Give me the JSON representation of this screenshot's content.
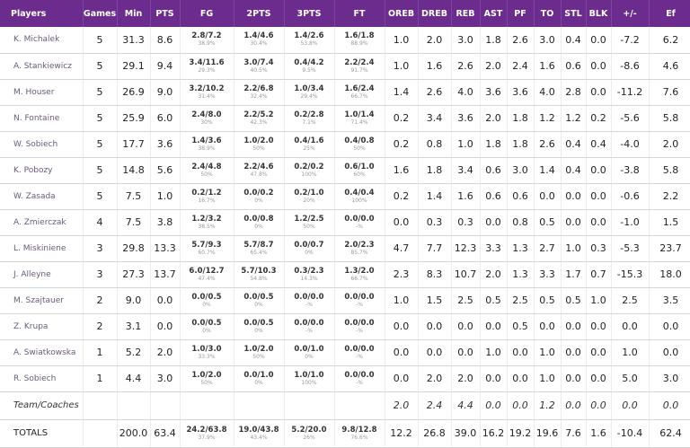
{
  "headers": [
    "Players",
    "Games",
    "Min",
    "PTS",
    "FG",
    "2PTS",
    "3PTS",
    "FT",
    "OREB",
    "DREB",
    "REB",
    "AST",
    "PF",
    "TO",
    "STL",
    "BLK",
    "+/-",
    "Ef"
  ],
  "players": [
    {
      "name": "K. Michalek",
      "games": "5",
      "min": "31.3",
      "pts": "8.6",
      "fg": {
        "m": "2.8/7.2",
        "p": "38.9%"
      },
      "p2": {
        "m": "1.4/4.6",
        "p": "30.4%"
      },
      "p3": {
        "m": "1.4/2.6",
        "p": "53.8%"
      },
      "ft": {
        "m": "1.6/1.8",
        "p": "88.9%"
      },
      "oreb": "1.0",
      "dreb": "2.0",
      "reb": "3.0",
      "ast": "1.8",
      "pf": "2.6",
      "to": "3.0",
      "stl": "0.4",
      "blk": "0.0",
      "pm": "-7.2",
      "ef": "6.2"
    },
    {
      "name": "A. Stankiewicz",
      "games": "5",
      "min": "29.1",
      "pts": "9.4",
      "fg": {
        "m": "3.4/11.6",
        "p": "29.3%"
      },
      "p2": {
        "m": "3.0/7.4",
        "p": "40.5%"
      },
      "p3": {
        "m": "0.4/4.2",
        "p": "9.5%"
      },
      "ft": {
        "m": "2.2/2.4",
        "p": "91.7%"
      },
      "oreb": "1.0",
      "dreb": "1.6",
      "reb": "2.6",
      "ast": "2.0",
      "pf": "2.4",
      "to": "1.6",
      "stl": "0.6",
      "blk": "0.0",
      "pm": "-8.6",
      "ef": "4.6"
    },
    {
      "name": "M. Houser",
      "games": "5",
      "min": "26.9",
      "pts": "9.0",
      "fg": {
        "m": "3.2/10.2",
        "p": "31.4%"
      },
      "p2": {
        "m": "2.2/6.8",
        "p": "32.4%"
      },
      "p3": {
        "m": "1.0/3.4",
        "p": "29.4%"
      },
      "ft": {
        "m": "1.6/2.4",
        "p": "66.7%"
      },
      "oreb": "1.4",
      "dreb": "2.6",
      "reb": "4.0",
      "ast": "3.6",
      "pf": "3.6",
      "to": "4.0",
      "stl": "2.8",
      "blk": "0.0",
      "pm": "-11.2",
      "ef": "7.6"
    },
    {
      "name": "N. Fontaine",
      "games": "5",
      "min": "25.9",
      "pts": "6.0",
      "fg": {
        "m": "2.4/8.0",
        "p": "30%"
      },
      "p2": {
        "m": "2.2/5.2",
        "p": "42.3%"
      },
      "p3": {
        "m": "0.2/2.8",
        "p": "7.1%"
      },
      "ft": {
        "m": "1.0/1.4",
        "p": "71.4%"
      },
      "oreb": "0.2",
      "dreb": "3.4",
      "reb": "3.6",
      "ast": "2.0",
      "pf": "1.8",
      "to": "1.2",
      "stl": "1.2",
      "blk": "0.2",
      "pm": "-5.6",
      "ef": "5.8"
    },
    {
      "name": "W. Sobiech",
      "games": "5",
      "min": "17.7",
      "pts": "3.6",
      "fg": {
        "m": "1.4/3.6",
        "p": "38.9%"
      },
      "p2": {
        "m": "1.0/2.0",
        "p": "50%"
      },
      "p3": {
        "m": "0.4/1.6",
        "p": "25%"
      },
      "ft": {
        "m": "0.4/0.8",
        "p": "50%"
      },
      "oreb": "0.2",
      "dreb": "0.8",
      "reb": "1.0",
      "ast": "1.8",
      "pf": "1.8",
      "to": "2.6",
      "stl": "0.4",
      "blk": "0.4",
      "pm": "-4.0",
      "ef": "2.0"
    },
    {
      "name": "K. Pobozy",
      "games": "5",
      "min": "14.8",
      "pts": "5.6",
      "fg": {
        "m": "2.4/4.8",
        "p": "50%"
      },
      "p2": {
        "m": "2.2/4.6",
        "p": "47.8%"
      },
      "p3": {
        "m": "0.2/0.2",
        "p": "100%"
      },
      "ft": {
        "m": "0.6/1.0",
        "p": "60%"
      },
      "oreb": "1.6",
      "dreb": "1.8",
      "reb": "3.4",
      "ast": "0.6",
      "pf": "3.0",
      "to": "1.4",
      "stl": "0.4",
      "blk": "0.0",
      "pm": "-3.8",
      "ef": "5.8"
    },
    {
      "name": "W. Zasada",
      "games": "5",
      "min": "7.5",
      "pts": "1.0",
      "fg": {
        "m": "0.2/1.2",
        "p": "16.7%"
      },
      "p2": {
        "m": "0.0/0.2",
        "p": "0%"
      },
      "p3": {
        "m": "0.2/1.0",
        "p": "20%"
      },
      "ft": {
        "m": "0.4/0.4",
        "p": "100%"
      },
      "oreb": "0.2",
      "dreb": "1.4",
      "reb": "1.6",
      "ast": "0.6",
      "pf": "0.6",
      "to": "0.0",
      "stl": "0.0",
      "blk": "0.0",
      "pm": "-0.6",
      "ef": "2.2"
    },
    {
      "name": "A. Zmierczak",
      "games": "4",
      "min": "7.5",
      "pts": "3.8",
      "fg": {
        "m": "1.2/3.2",
        "p": "38.5%"
      },
      "p2": {
        "m": "0.0/0.8",
        "p": "0%"
      },
      "p3": {
        "m": "1.2/2.5",
        "p": "50%"
      },
      "ft": {
        "m": "0.0/0.0",
        "p": "-%"
      },
      "oreb": "0.0",
      "dreb": "0.3",
      "reb": "0.3",
      "ast": "0.0",
      "pf": "0.8",
      "to": "0.5",
      "stl": "0.0",
      "blk": "0.0",
      "pm": "-1.0",
      "ef": "1.5"
    },
    {
      "name": "L. Miskiniene",
      "games": "3",
      "min": "29.8",
      "pts": "13.3",
      "fg": {
        "m": "5.7/9.3",
        "p": "60.7%"
      },
      "p2": {
        "m": "5.7/8.7",
        "p": "65.4%"
      },
      "p3": {
        "m": "0.0/0.7",
        "p": "0%"
      },
      "ft": {
        "m": "2.0/2.3",
        "p": "85.7%"
      },
      "oreb": "4.7",
      "dreb": "7.7",
      "reb": "12.3",
      "ast": "3.3",
      "pf": "1.3",
      "to": "2.7",
      "stl": "1.0",
      "blk": "0.3",
      "pm": "-5.3",
      "ef": "23.7"
    },
    {
      "name": "J. Alleyne",
      "games": "3",
      "min": "27.3",
      "pts": "13.7",
      "fg": {
        "m": "6.0/12.7",
        "p": "47.4%"
      },
      "p2": {
        "m": "5.7/10.3",
        "p": "54.8%"
      },
      "p3": {
        "m": "0.3/2.3",
        "p": "14.3%"
      },
      "ft": {
        "m": "1.3/2.0",
        "p": "66.7%"
      },
      "oreb": "2.3",
      "dreb": "8.3",
      "reb": "10.7",
      "ast": "2.0",
      "pf": "1.3",
      "to": "3.3",
      "stl": "1.7",
      "blk": "0.7",
      "pm": "-15.3",
      "ef": "18.0"
    },
    {
      "name": "M. Szajtauer",
      "games": "2",
      "min": "9.0",
      "pts": "0.0",
      "fg": {
        "m": "0.0/0.5",
        "p": "0%"
      },
      "p2": {
        "m": "0.0/0.5",
        "p": "0%"
      },
      "p3": {
        "m": "0.0/0.0",
        "p": "-%"
      },
      "ft": {
        "m": "0.0/0.0",
        "p": "-%"
      },
      "oreb": "1.0",
      "dreb": "1.5",
      "reb": "2.5",
      "ast": "0.5",
      "pf": "2.5",
      "to": "0.5",
      "stl": "0.5",
      "blk": "1.0",
      "pm": "2.5",
      "ef": "3.5"
    },
    {
      "name": "Z. Krupa",
      "games": "2",
      "min": "3.1",
      "pts": "0.0",
      "fg": {
        "m": "0.0/0.5",
        "p": "0%"
      },
      "p2": {
        "m": "0.0/0.5",
        "p": "0%"
      },
      "p3": {
        "m": "0.0/0.0",
        "p": "-%"
      },
      "ft": {
        "m": "0.0/0.0",
        "p": "-%"
      },
      "oreb": "0.0",
      "dreb": "0.0",
      "reb": "0.0",
      "ast": "0.0",
      "pf": "0.5",
      "to": "0.0",
      "stl": "0.0",
      "blk": "0.0",
      "pm": "0.0",
      "ef": "0.0"
    },
    {
      "name": "A. Swiatkowska",
      "games": "1",
      "min": "5.2",
      "pts": "2.0",
      "fg": {
        "m": "1.0/3.0",
        "p": "33.3%"
      },
      "p2": {
        "m": "1.0/2.0",
        "p": "50%"
      },
      "p3": {
        "m": "0.0/1.0",
        "p": "0%"
      },
      "ft": {
        "m": "0.0/0.0",
        "p": "-%"
      },
      "oreb": "0.0",
      "dreb": "0.0",
      "reb": "0.0",
      "ast": "1.0",
      "pf": "0.0",
      "to": "1.0",
      "stl": "0.0",
      "blk": "0.0",
      "pm": "1.0",
      "ef": "0.0"
    },
    {
      "name": "R. Sobiech",
      "games": "1",
      "min": "4.4",
      "pts": "3.0",
      "fg": {
        "m": "1.0/2.0",
        "p": "50%"
      },
      "p2": {
        "m": "0.0/1.0",
        "p": "0%"
      },
      "p3": {
        "m": "1.0/1.0",
        "p": "100%"
      },
      "ft": {
        "m": "0.0/0.0",
        "p": "-%"
      },
      "oreb": "0.0",
      "dreb": "2.0",
      "reb": "2.0",
      "ast": "0.0",
      "pf": "0.0",
      "to": "1.0",
      "stl": "0.0",
      "blk": "0.0",
      "pm": "5.0",
      "ef": "3.0"
    }
  ],
  "team": {
    "name": "Team/Coaches",
    "oreb": "2.0",
    "dreb": "2.4",
    "reb": "4.4",
    "ast": "0.0",
    "pf": "0.0",
    "to": "1.2",
    "stl": "0.0",
    "blk": "0.0",
    "pm": "0.0",
    "ef": "0.0"
  },
  "totals": {
    "name": "TOTALS",
    "min": "200.0",
    "pts": "63.4",
    "fg": {
      "m": "24.2/63.8",
      "p": "37.9%"
    },
    "p2": {
      "m": "19.0/43.8",
      "p": "43.4%"
    },
    "p3": {
      "m": "5.2/20.0",
      "p": "26%"
    },
    "ft": {
      "m": "9.8/12.8",
      "p": "76.6%"
    },
    "oreb": "12.2",
    "dreb": "26.8",
    "reb": "39.0",
    "ast": "16.2",
    "pf": "19.2",
    "to": "19.6",
    "stl": "7.6",
    "blk": "1.6",
    "pm": "-10.4",
    "ef": "62.4"
  },
  "colors": {
    "header_bg": "#6b2c8e",
    "header_text": "#ffffff",
    "name_text": "#6a5a7a",
    "pct_text": "#999999"
  }
}
